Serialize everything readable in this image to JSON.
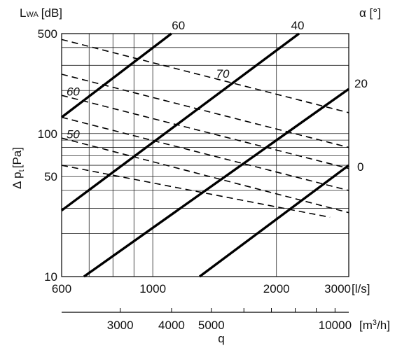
{
  "chart_data": {
    "type": "line",
    "x_axis": {
      "label": "q",
      "scale": "log",
      "range": [
        600,
        3000
      ],
      "primary_unit": "[l/s]",
      "primary_ticks": [
        "600",
        "1000",
        "2000",
        "3000"
      ],
      "secondary_unit": "[m³/h]",
      "secondary_ticks": [
        "3000",
        "4000",
        "5000",
        "10000"
      ]
    },
    "y_axis": {
      "label": "Δ pt [Pa]",
      "scale": "log",
      "range": [
        10,
        500
      ],
      "ticks": [
        "10",
        "50",
        "100",
        "500"
      ]
    },
    "grid": true,
    "series_groups": [
      {
        "name": "α [°]",
        "style": "solid",
        "series": [
          {
            "name": "60",
            "points": [
              [
                600,
                130
              ],
              [
                1110,
                500
              ]
            ]
          },
          {
            "name": "40",
            "points": [
              [
                600,
                29
              ],
              [
                2270,
                500
              ]
            ]
          },
          {
            "name": "20",
            "points": [
              [
                680,
                10
              ],
              [
                3000,
                205
              ]
            ]
          },
          {
            "name": "0",
            "points": [
              [
                1300,
                10
              ],
              [
                3000,
                60
              ]
            ]
          }
        ]
      },
      {
        "name": "LWA [dB]",
        "style": "dashed",
        "series": [
          {
            "name": "70",
            "points": [
              [
                600,
                455
              ],
              [
                3000,
                140
              ]
            ]
          },
          {
            "name": "",
            "points": [
              [
                600,
                260
              ],
              [
                3000,
                80
              ]
            ]
          },
          {
            "name": "60",
            "points": [
              [
                600,
                185
              ],
              [
                3000,
                57
              ]
            ]
          },
          {
            "name": "",
            "points": [
              [
                600,
                130
              ],
              [
                3000,
                40
              ]
            ]
          },
          {
            "name": "50",
            "points": [
              [
                600,
                93
              ],
              [
                3000,
                28
              ]
            ]
          },
          {
            "name": "",
            "points": [
              [
                600,
                60
              ],
              [
                2700,
                26
              ]
            ]
          }
        ]
      }
    ],
    "labels": {
      "lwa_label": "LWA [dB]",
      "lwa_main": "L",
      "lwa_sub": "WA",
      "lwa_unit": "[dB]",
      "alpha_label": "α [°]",
      "y_label_pre": "Δ p",
      "y_label_sub": "t",
      "y_label_unit": "[Pa]",
      "x_label": "q",
      "x_unit_primary": "[l/s]",
      "x_unit_secondary_pre": "[m",
      "x_unit_secondary_sup": "3",
      "x_unit_secondary_post": "/h]"
    }
  }
}
